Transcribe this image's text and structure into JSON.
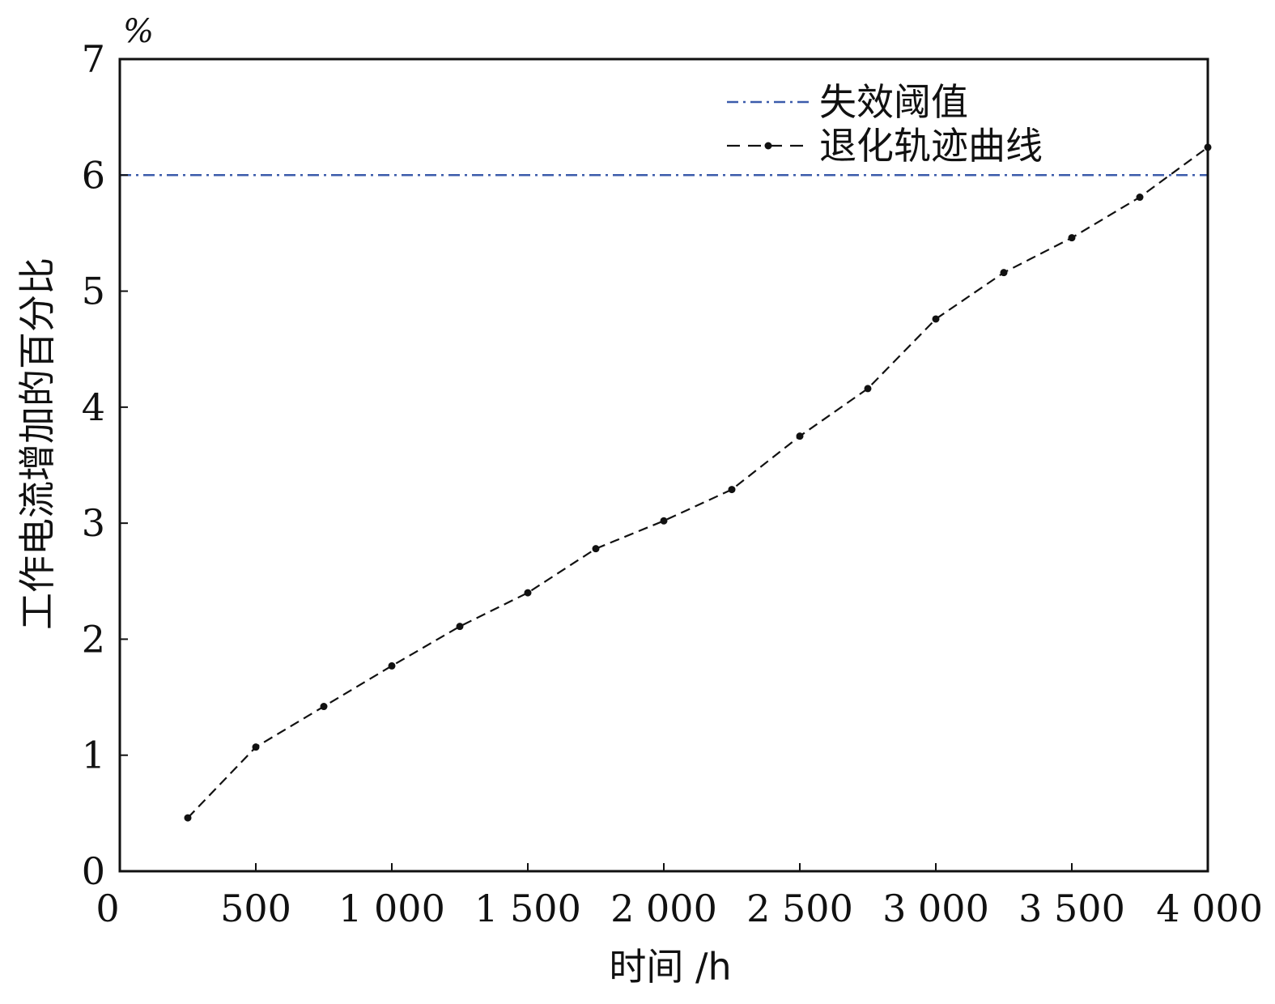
{
  "chart_data": {
    "type": "line",
    "xlabel": "时间 /h",
    "ylabel": "工作电流增加的百分比",
    "y_unit": "%",
    "xlim": [
      0,
      4000
    ],
    "ylim": [
      0,
      7
    ],
    "x_ticks": [
      0,
      500,
      1000,
      1500,
      2000,
      2500,
      3000,
      3500,
      4000
    ],
    "x_tick_labels": [
      "0",
      "500",
      "1 000",
      "1 500",
      "2 000",
      "2 500",
      "3 000",
      "3 500",
      "4 000"
    ],
    "y_ticks": [
      0,
      1,
      2,
      3,
      4,
      5,
      6,
      7
    ],
    "y_tick_labels": [
      "0",
      "1",
      "2",
      "3",
      "4",
      "5",
      "6",
      "7"
    ],
    "grid": false,
    "legend_position": "top-right",
    "threshold": {
      "name": "失效阈值",
      "y": 6.0,
      "color": "#3b5bab",
      "style": "dash-dot"
    },
    "series": [
      {
        "name": "退化轨迹曲线",
        "color": "#111111",
        "style": "dashed-with-markers",
        "x": [
          250,
          500,
          750,
          1000,
          1250,
          1500,
          1750,
          2000,
          2250,
          2500,
          2750,
          3000,
          3250,
          3500,
          3750,
          4000
        ],
        "y": [
          0.46,
          1.07,
          1.42,
          1.77,
          2.11,
          2.4,
          2.78,
          3.02,
          3.29,
          3.75,
          4.16,
          4.76,
          5.16,
          5.46,
          5.81,
          6.24
        ]
      }
    ]
  }
}
